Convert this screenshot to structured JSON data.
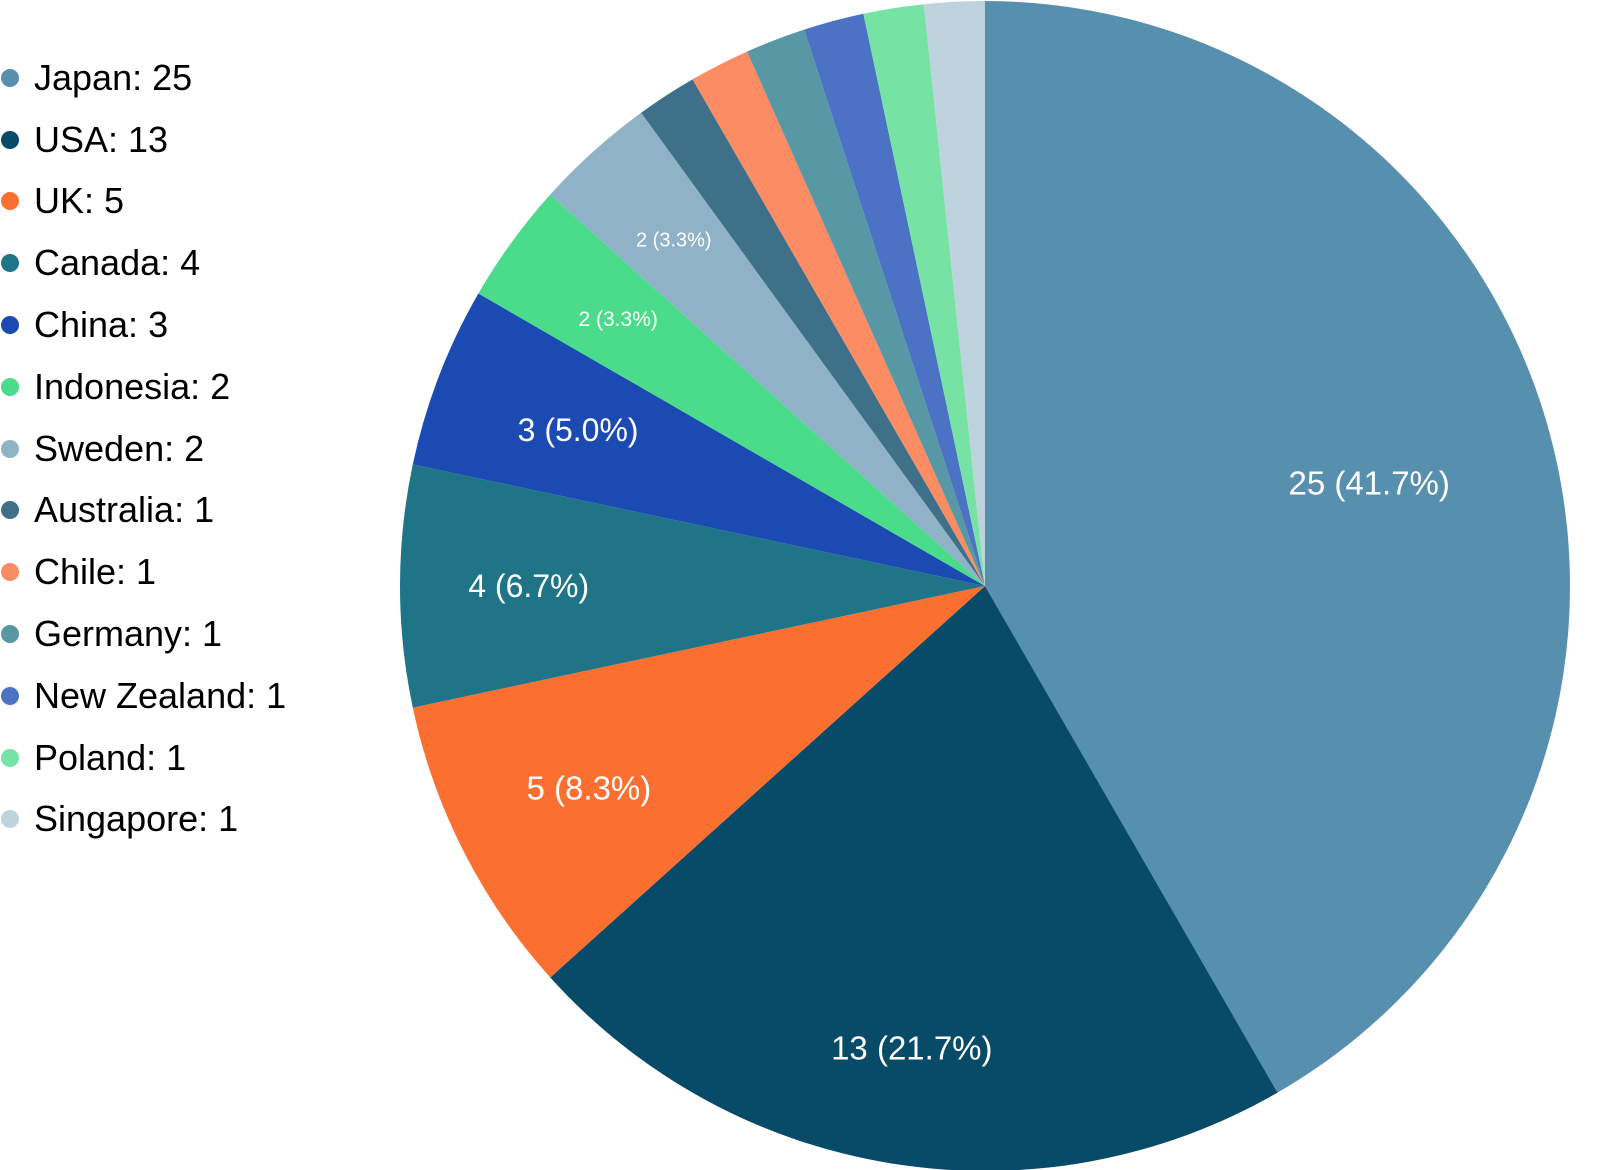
{
  "chart_data": {
    "type": "pie",
    "title": "",
    "total": 60,
    "background": "#ffffff",
    "slice_label_color": "#ffffff",
    "legend_text_color": "#000000",
    "legend_position": "top-left",
    "start_angle_deg": 0,
    "direction": "clockwise",
    "series": [
      {
        "label": "Japan",
        "value": 25,
        "pct": 41.7,
        "color": "#578fae",
        "slice_label": "25 (41.7%)",
        "legend_label": "Japan: 25",
        "label_r_frac": 0.68,
        "label_font": 33
      },
      {
        "label": "USA",
        "value": 13,
        "pct": 21.7,
        "color": "#084b68",
        "slice_label": "13 (21.7%)",
        "legend_label": "USA: 13",
        "label_r_frac": 0.8,
        "label_font": 33
      },
      {
        "label": "UK",
        "value": 5,
        "pct": 8.3,
        "color": "#fb7030",
        "slice_label": "5 (8.3%)",
        "legend_label": "UK: 5",
        "label_r_frac": 0.76,
        "label_font": 33
      },
      {
        "label": "Canada",
        "value": 4,
        "pct": 6.7,
        "color": "#1f7587",
        "slice_label": "4 (6.7%)",
        "legend_label": "Canada: 4",
        "label_r_frac": 0.78,
        "label_font": 32
      },
      {
        "label": "China",
        "value": 3,
        "pct": 5.0,
        "color": "#1b4ab2",
        "slice_label": "3 (5.0%)",
        "legend_label": "China: 3",
        "label_r_frac": 0.745,
        "label_font": 32
      },
      {
        "label": "Indonesia",
        "value": 2,
        "pct": 3.3,
        "color": "#4bdc8b",
        "slice_label": "2 (3.3%)",
        "legend_label": "Indonesia: 2",
        "label_r_frac": 0.775,
        "label_font": 21
      },
      {
        "label": "Sweden",
        "value": 2,
        "pct": 3.3,
        "color": "#90b2c7",
        "slice_label": "2 (3.3%)",
        "legend_label": "Sweden: 2",
        "label_r_frac": 0.795,
        "label_font": 20
      },
      {
        "label": "Australia",
        "value": 1,
        "pct": 1.7,
        "color": "#3f7089",
        "slice_label": null,
        "legend_label": "Australia: 1",
        "label_r_frac": null,
        "label_font": null
      },
      {
        "label": "Chile",
        "value": 1,
        "pct": 1.7,
        "color": "#fb8c64",
        "slice_label": null,
        "legend_label": "Chile: 1",
        "label_r_frac": null,
        "label_font": null
      },
      {
        "label": "Germany",
        "value": 1,
        "pct": 1.7,
        "color": "#5897a4",
        "slice_label": null,
        "legend_label": "Germany: 1",
        "label_r_frac": null,
        "label_font": null
      },
      {
        "label": "New Zealand",
        "value": 1,
        "pct": 1.7,
        "color": "#4c72c5",
        "slice_label": null,
        "legend_label": "New Zealand: 1",
        "label_r_frac": null,
        "label_font": null
      },
      {
        "label": "Poland",
        "value": 1,
        "pct": 1.7,
        "color": "#76e3a5",
        "slice_label": null,
        "legend_label": "Poland: 1",
        "label_r_frac": null,
        "label_font": null
      },
      {
        "label": "Singapore",
        "value": 1,
        "pct": 1.7,
        "color": "#bed3de",
        "slice_label": null,
        "legend_label": "Singapore: 1",
        "label_r_frac": null,
        "label_font": null
      }
    ]
  }
}
